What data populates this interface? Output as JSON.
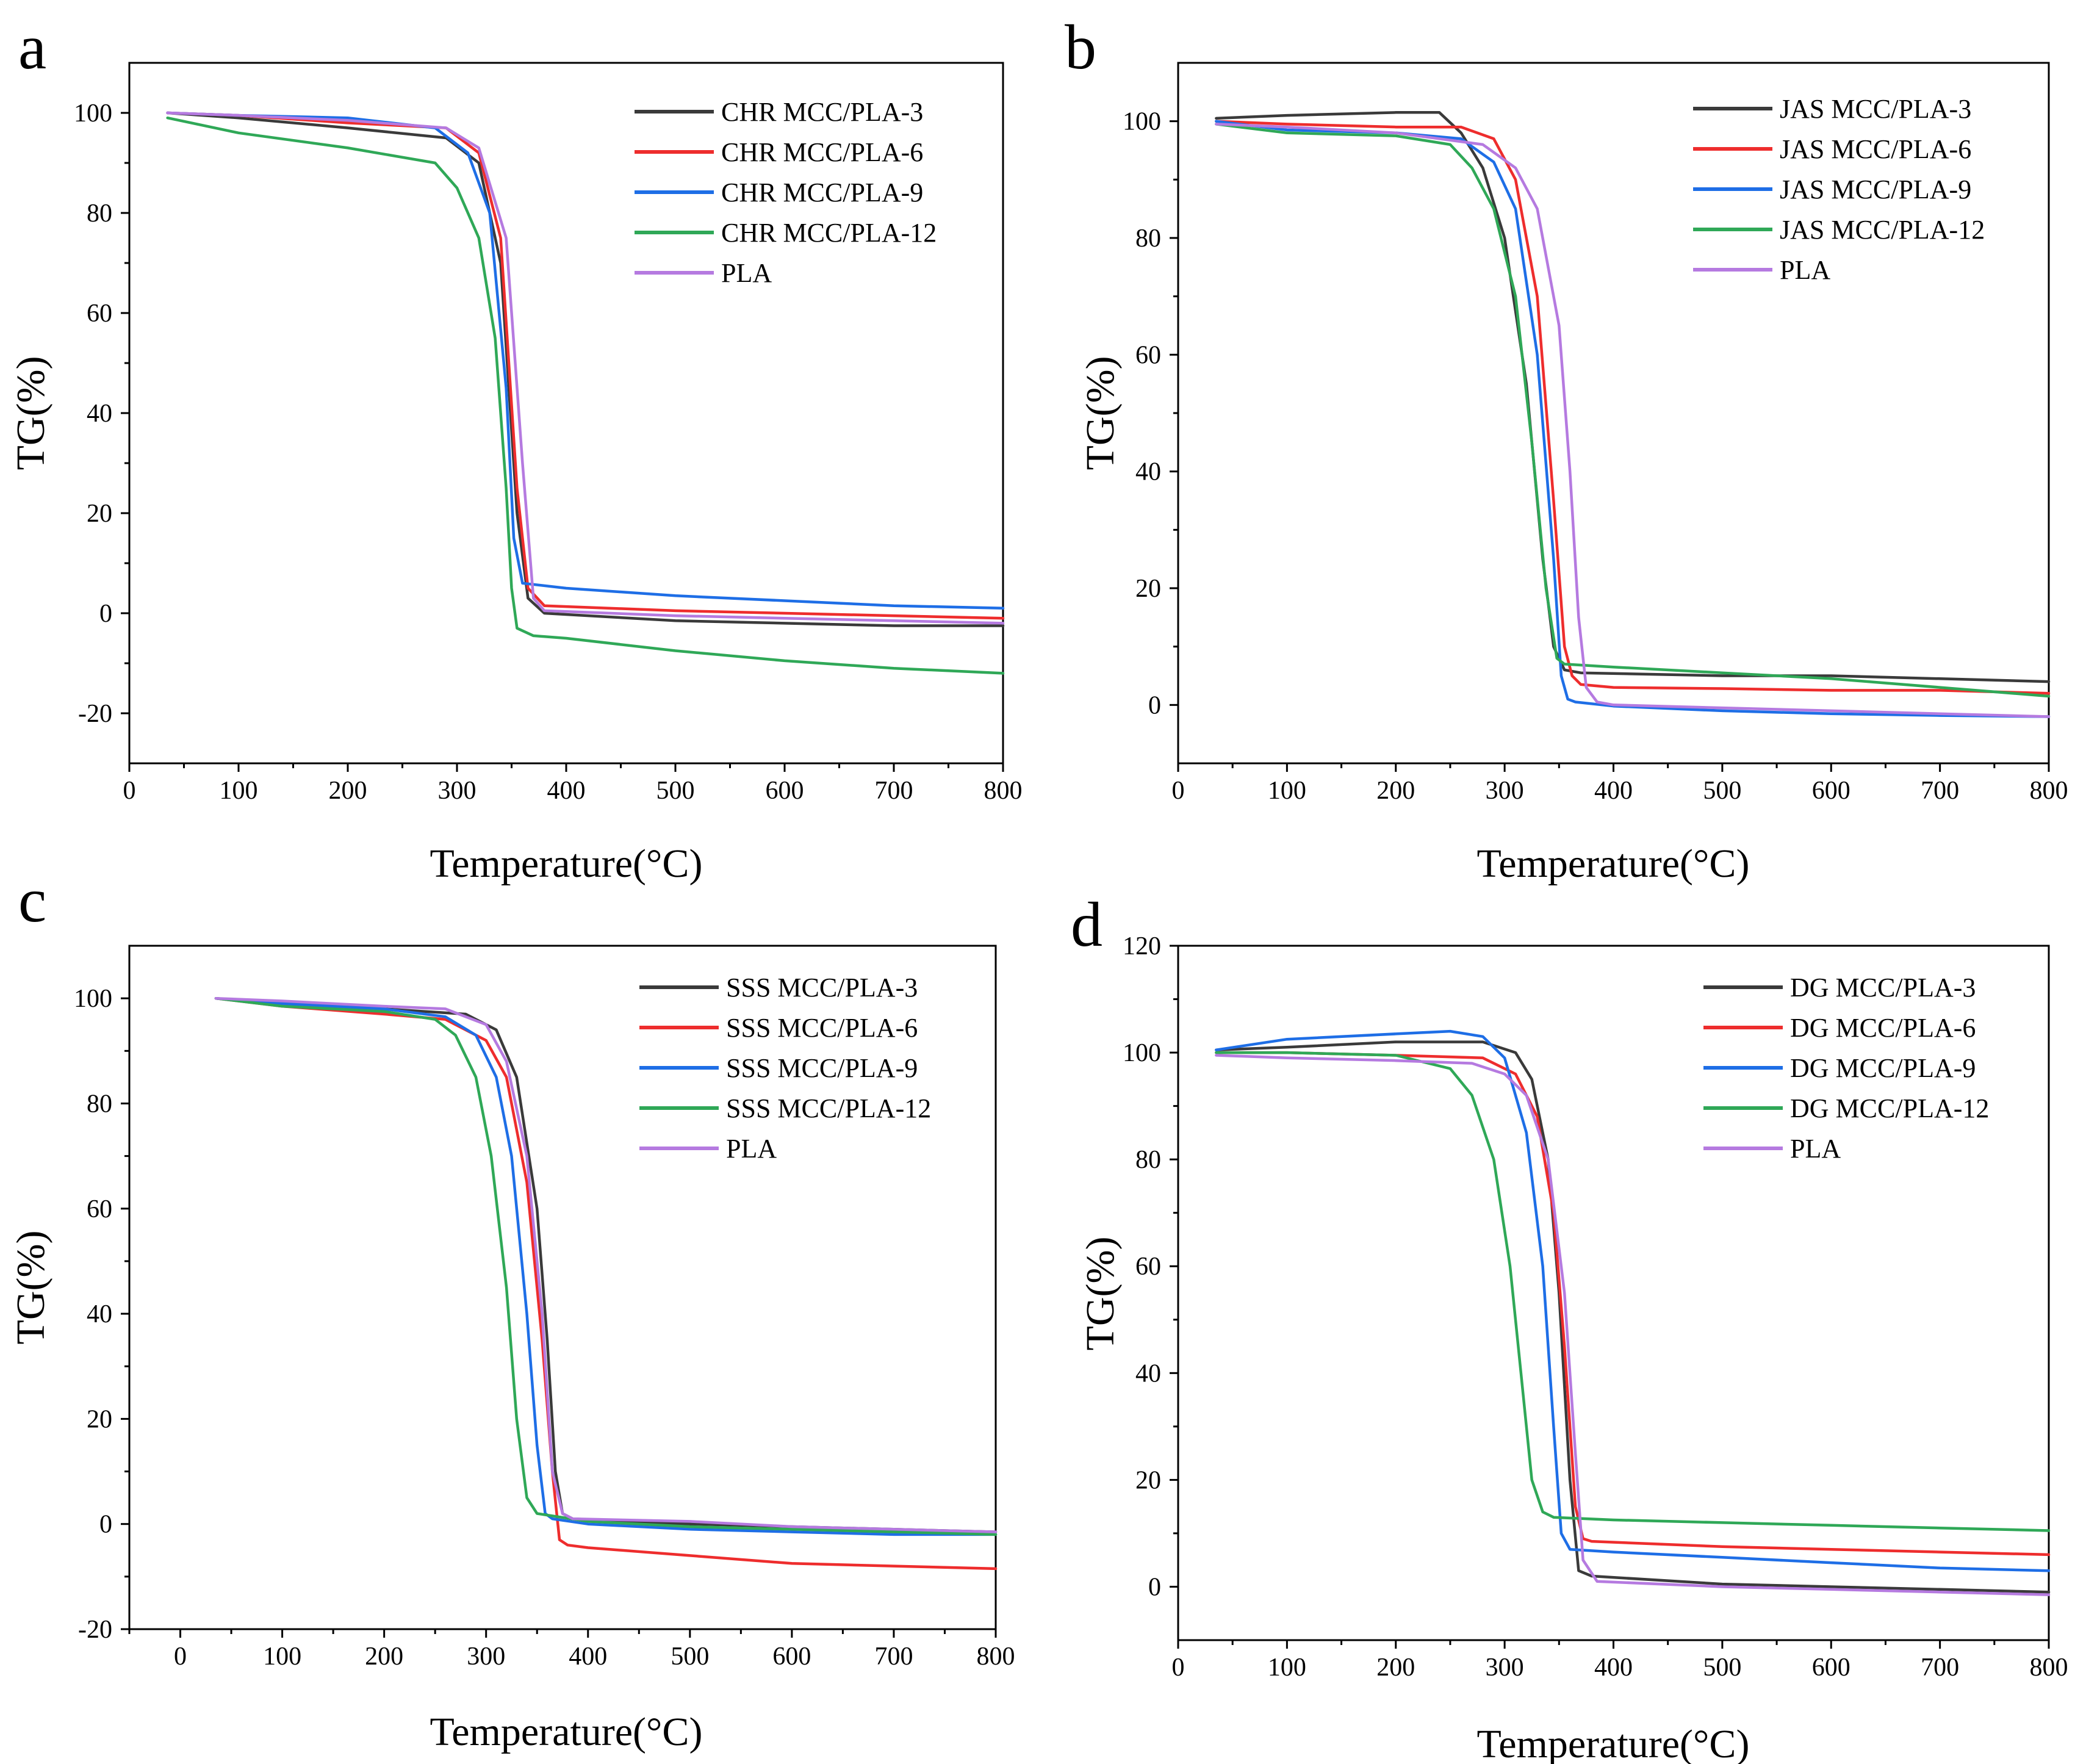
{
  "colors": {
    "s3": "#3a3a3a",
    "s6": "#ee2d2d",
    "s9": "#1e6ee6",
    "s12": "#2fa857",
    "pla": "#b57ae0"
  },
  "chart_data": [
    {
      "type": "line",
      "panel_label": "a",
      "xlabel": "Temperature(°C)",
      "ylabel": "TG(%)",
      "xlim": [
        0,
        800
      ],
      "ylim": [
        -30,
        110
      ],
      "xticks": [
        "0",
        "100",
        "200",
        "300",
        "400",
        "500",
        "600",
        "700",
        "800"
      ],
      "yticks": [
        "-20",
        "0",
        "20",
        "40",
        "60",
        "80",
        "100"
      ],
      "legend_position": "top-right",
      "series": [
        {
          "name": "CHR MCC/PLA-3",
          "color_key": "s3",
          "x": [
            35,
            100,
            200,
            290,
            320,
            340,
            355,
            365,
            380,
            500,
            600,
            700,
            800
          ],
          "y": [
            100,
            99,
            97,
            95,
            90,
            70,
            20,
            3,
            0,
            -1.5,
            -2,
            -2.5,
            -2.5
          ]
        },
        {
          "name": "CHR MCC/PLA-6",
          "color_key": "s6",
          "x": [
            35,
            100,
            200,
            290,
            320,
            340,
            355,
            365,
            380,
            500,
            600,
            700,
            800
          ],
          "y": [
            100,
            99.5,
            98,
            97,
            92,
            75,
            25,
            5,
            1.5,
            0.5,
            0,
            -0.5,
            -1
          ]
        },
        {
          "name": "CHR MCC/PLA-9",
          "color_key": "s9",
          "x": [
            35,
            100,
            200,
            280,
            310,
            330,
            345,
            352,
            360,
            400,
            500,
            600,
            700,
            800
          ],
          "y": [
            100,
            99.5,
            99,
            97,
            92,
            80,
            45,
            15,
            6,
            5,
            3.5,
            2.5,
            1.5,
            1
          ]
        },
        {
          "name": "CHR MCC/PLA-12",
          "color_key": "s12",
          "x": [
            35,
            100,
            200,
            280,
            300,
            320,
            335,
            345,
            350,
            355,
            370,
            400,
            500,
            600,
            700,
            800
          ],
          "y": [
            99,
            96,
            93,
            90,
            85,
            75,
            55,
            25,
            5,
            -3,
            -4.5,
            -5,
            -7.5,
            -9.5,
            -11,
            -12
          ]
        },
        {
          "name": "PLA",
          "color_key": "pla",
          "x": [
            35,
            100,
            200,
            290,
            320,
            345,
            360,
            370,
            380,
            500,
            600,
            700,
            800
          ],
          "y": [
            100,
            99.5,
            98.5,
            97,
            93,
            75,
            30,
            3,
            0.5,
            -0.5,
            -1,
            -1.5,
            -2
          ]
        }
      ]
    },
    {
      "type": "line",
      "panel_label": "b",
      "xlabel": "Temperature(°C)",
      "ylabel": "TG(%)",
      "xlim": [
        0,
        800
      ],
      "ylim": [
        -10,
        110
      ],
      "xticks": [
        "0",
        "100",
        "200",
        "300",
        "400",
        "500",
        "600",
        "700",
        "800"
      ],
      "yticks": [
        "0",
        "20",
        "40",
        "60",
        "80",
        "100"
      ],
      "legend_position": "top-right",
      "series": [
        {
          "name": "JAS MCC/PLA-3",
          "color_key": "s3",
          "x": [
            35,
            100,
            200,
            240,
            260,
            280,
            300,
            320,
            335,
            345,
            355,
            370,
            500,
            600,
            700,
            800
          ],
          "y": [
            100.5,
            101,
            101.5,
            101.5,
            98,
            92,
            80,
            55,
            25,
            10,
            6,
            5.5,
            5,
            5,
            4.5,
            4
          ]
        },
        {
          "name": "JAS MCC/PLA-6",
          "color_key": "s6",
          "x": [
            35,
            100,
            200,
            260,
            290,
            310,
            330,
            345,
            355,
            362,
            370,
            400,
            500,
            600,
            700,
            800
          ],
          "y": [
            100,
            99.5,
            99,
            99,
            97,
            90,
            70,
            35,
            10,
            5,
            3.5,
            3,
            2.8,
            2.5,
            2.5,
            2
          ]
        },
        {
          "name": "JAS MCC/PLA-9",
          "color_key": "s9",
          "x": [
            35,
            100,
            200,
            260,
            290,
            310,
            330,
            345,
            352,
            358,
            365,
            400,
            500,
            600,
            700,
            800
          ],
          "y": [
            100,
            98.5,
            98,
            97,
            93,
            85,
            60,
            25,
            5,
            1,
            0.5,
            -0.2,
            -1,
            -1.5,
            -1.8,
            -2
          ]
        },
        {
          "name": "JAS MCC/PLA-12",
          "color_key": "s12",
          "x": [
            35,
            100,
            200,
            250,
            270,
            290,
            310,
            325,
            338,
            348,
            355,
            400,
            500,
            600,
            700,
            800
          ],
          "y": [
            99.5,
            98,
            97.5,
            96,
            92,
            85,
            70,
            45,
            20,
            8,
            7,
            6.5,
            5.5,
            4.5,
            3,
            1.5
          ]
        },
        {
          "name": "PLA",
          "color_key": "pla",
          "x": [
            35,
            100,
            200,
            280,
            310,
            330,
            350,
            360,
            368,
            375,
            385,
            400,
            500,
            600,
            700,
            800
          ],
          "y": [
            99.5,
            99,
            98,
            96,
            92,
            85,
            65,
            40,
            15,
            3,
            0.5,
            0,
            -0.5,
            -1,
            -1.5,
            -2
          ]
        }
      ]
    },
    {
      "type": "line",
      "panel_label": "c",
      "xlabel": "Temperature(°C)",
      "ylabel": "TG(%)",
      "xlim": [
        -50,
        800
      ],
      "ylim": [
        -20,
        110
      ],
      "xticks": [
        "0",
        "100",
        "200",
        "300",
        "400",
        "500",
        "600",
        "700",
        "800"
      ],
      "yticks": [
        "-20",
        "0",
        "20",
        "40",
        "60",
        "80",
        "100"
      ],
      "legend_position": "top-right",
      "series": [
        {
          "name": "SSS MCC/PLA-3",
          "color_key": "s3",
          "x": [
            35,
            100,
            200,
            280,
            310,
            330,
            350,
            360,
            368,
            375,
            385,
            500,
            600,
            700,
            800
          ],
          "y": [
            100,
            99,
            98,
            97,
            94,
            85,
            60,
            35,
            10,
            2,
            1,
            0,
            -0.5,
            -1,
            -1.5
          ]
        },
        {
          "name": "SSS MCC/PLA-6",
          "color_key": "s6",
          "x": [
            35,
            100,
            200,
            260,
            300,
            320,
            340,
            355,
            365,
            372,
            380,
            400,
            500,
            600,
            700,
            800
          ],
          "y": [
            100,
            98.5,
            97,
            96,
            92,
            85,
            65,
            35,
            10,
            -3,
            -4,
            -4.5,
            -6,
            -7.5,
            -8,
            -8.5
          ]
        },
        {
          "name": "SSS MCC/PLA-9",
          "color_key": "s9",
          "x": [
            35,
            100,
            200,
            260,
            290,
            310,
            325,
            340,
            350,
            358,
            365,
            400,
            500,
            600,
            700,
            800
          ],
          "y": [
            100,
            99,
            98,
            96.5,
            93,
            85,
            70,
            40,
            15,
            2,
            1,
            0,
            -1,
            -1.5,
            -2,
            -2
          ]
        },
        {
          "name": "SSS MCC/PLA-12",
          "color_key": "s12",
          "x": [
            35,
            100,
            200,
            250,
            270,
            290,
            305,
            320,
            330,
            340,
            350,
            400,
            500,
            600,
            700,
            800
          ],
          "y": [
            100,
            98.5,
            97.5,
            96,
            93,
            85,
            70,
            45,
            20,
            5,
            2,
            0.5,
            -0.5,
            -1,
            -1.5,
            -2
          ]
        },
        {
          "name": "PLA",
          "color_key": "pla",
          "x": [
            35,
            100,
            200,
            260,
            300,
            320,
            340,
            355,
            365,
            375,
            385,
            500,
            600,
            700,
            800
          ],
          "y": [
            100,
            99.5,
            98.5,
            98,
            95,
            88,
            70,
            40,
            10,
            2,
            1,
            0.5,
            -0.5,
            -1,
            -1.5
          ]
        }
      ]
    },
    {
      "type": "line",
      "panel_label": "d",
      "xlabel": "Temperature(°C)",
      "ylabel": "TG(%)",
      "xlim": [
        0,
        800
      ],
      "ylim": [
        -10,
        120
      ],
      "xticks": [
        "0",
        "100",
        "200",
        "300",
        "400",
        "500",
        "600",
        "700",
        "800"
      ],
      "yticks": [
        "0",
        "20",
        "40",
        "60",
        "80",
        "100",
        "120"
      ],
      "legend_position": "top-right",
      "series": [
        {
          "name": "DG MCC/PLA-3",
          "color_key": "s3",
          "x": [
            35,
            100,
            200,
            280,
            310,
            325,
            340,
            350,
            360,
            368,
            380,
            500,
            600,
            700,
            800
          ],
          "y": [
            100.5,
            101,
            102,
            102,
            100,
            95,
            80,
            55,
            20,
            3,
            2,
            0.5,
            0,
            -0.5,
            -1
          ]
        },
        {
          "name": "DG MCC/PLA-6",
          "color_key": "s6",
          "x": [
            35,
            100,
            200,
            280,
            310,
            330,
            345,
            355,
            365,
            372,
            380,
            500,
            600,
            700,
            800
          ],
          "y": [
            100,
            100,
            99.5,
            99,
            96,
            88,
            70,
            45,
            15,
            9,
            8.5,
            7.5,
            7,
            6.5,
            6
          ]
        },
        {
          "name": "DG MCC/PLA-9",
          "color_key": "s9",
          "x": [
            35,
            100,
            200,
            250,
            280,
            300,
            320,
            335,
            345,
            352,
            360,
            400,
            500,
            600,
            700,
            800
          ],
          "y": [
            100.5,
            102.5,
            103.5,
            104,
            103,
            99,
            85,
            60,
            30,
            10,
            7,
            6.5,
            5.5,
            4.5,
            3.5,
            3
          ]
        },
        {
          "name": "DG MCC/PLA-12",
          "color_key": "s12",
          "x": [
            35,
            100,
            200,
            250,
            270,
            290,
            305,
            315,
            325,
            335,
            345,
            400,
            500,
            600,
            700,
            800
          ],
          "y": [
            100,
            100,
            99.5,
            97,
            92,
            80,
            60,
            40,
            20,
            14,
            13,
            12.5,
            12,
            11.5,
            11,
            10.5
          ]
        },
        {
          "name": "PLA",
          "color_key": "pla",
          "x": [
            35,
            100,
            200,
            270,
            300,
            320,
            340,
            355,
            365,
            372,
            385,
            500,
            600,
            700,
            800
          ],
          "y": [
            99.5,
            99,
            98.5,
            98,
            96,
            92,
            80,
            55,
            25,
            5,
            1,
            0,
            -0.5,
            -1,
            -1.5
          ]
        }
      ]
    }
  ]
}
